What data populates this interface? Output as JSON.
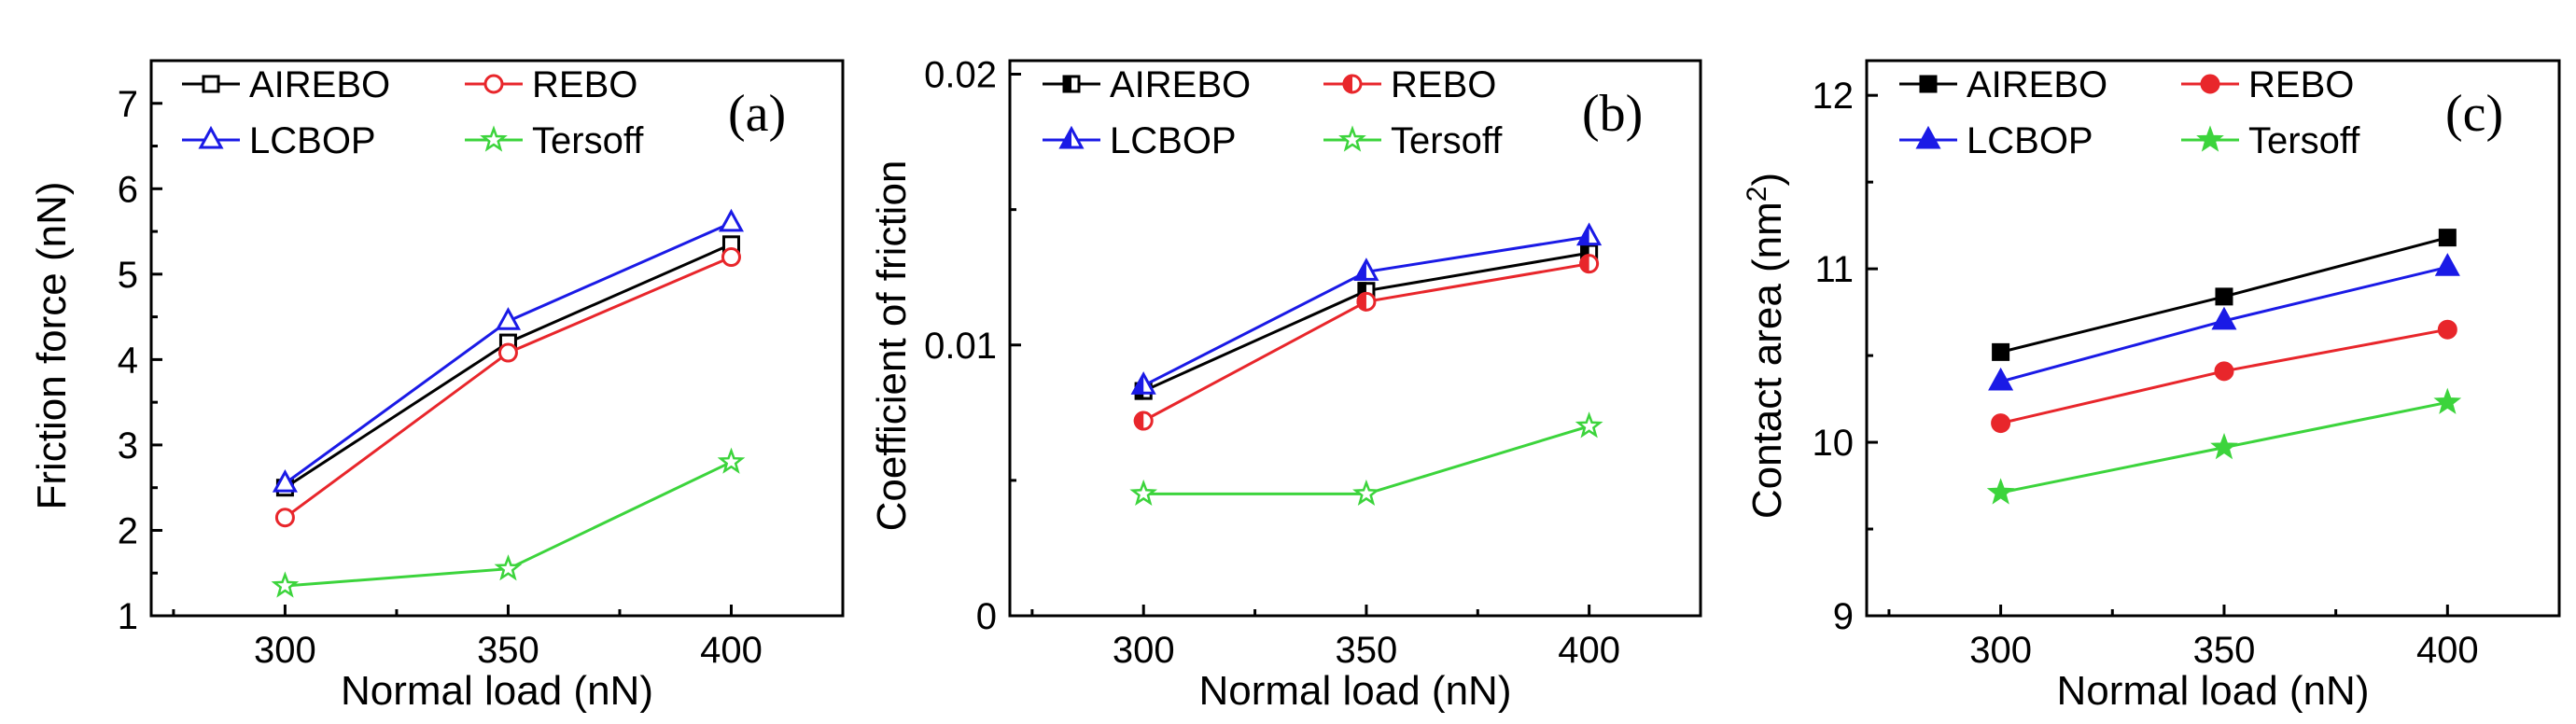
{
  "colors": {
    "AIREBO": "#000000",
    "REBO": "#e8262b",
    "LCBOP": "#1a1ae6",
    "Tersoff": "#3cd43c"
  },
  "chart_data": [
    {
      "type": "line",
      "panel_label": "(a)",
      "xlabel": "Normal load (nN)",
      "ylabel": "Friction force (nN)",
      "ylabel_sup": "",
      "xlim": [
        270,
        425
      ],
      "ylim": [
        1,
        7.5
      ],
      "x_ticks": [
        300,
        350,
        400
      ],
      "x_tick_labels": [
        "300",
        "350",
        "400"
      ],
      "y_ticks": [
        1,
        2,
        3,
        4,
        5,
        6,
        7
      ],
      "y_tick_labels": [
        "1",
        "2",
        "3",
        "4",
        "5",
        "6",
        "7"
      ],
      "marker_fill": "open",
      "x": [
        300,
        350,
        400
      ],
      "series": [
        {
          "name": "AIREBO",
          "marker": "square",
          "values": [
            2.5,
            4.2,
            5.35
          ]
        },
        {
          "name": "REBO",
          "marker": "circle",
          "values": [
            2.15,
            4.08,
            5.2
          ]
        },
        {
          "name": "LCBOP",
          "marker": "triangle",
          "values": [
            2.55,
            4.45,
            5.6
          ]
        },
        {
          "name": "Tersoff",
          "marker": "star",
          "values": [
            1.35,
            1.55,
            2.8
          ]
        }
      ],
      "legend": [
        "AIREBO",
        "REBO",
        "LCBOP",
        "Tersoff"
      ]
    },
    {
      "type": "line",
      "panel_label": "(b)",
      "xlabel": "Normal load (nN)",
      "ylabel": "Coefficient of friction",
      "ylabel_sup": "",
      "xlim": [
        270,
        425
      ],
      "ylim": [
        0,
        0.0205
      ],
      "x_ticks": [
        300,
        350,
        400
      ],
      "x_tick_labels": [
        "300",
        "350",
        "400"
      ],
      "y_ticks": [
        0,
        0.01,
        0.02
      ],
      "y_tick_labels": [
        "0",
        "0.01",
        "0.02"
      ],
      "marker_fill": "half",
      "x": [
        300,
        350,
        400
      ],
      "series": [
        {
          "name": "AIREBO",
          "marker": "square",
          "values": [
            0.0083,
            0.012,
            0.0134
          ]
        },
        {
          "name": "REBO",
          "marker": "circle",
          "values": [
            0.0072,
            0.0116,
            0.013
          ]
        },
        {
          "name": "LCBOP",
          "marker": "triangle",
          "values": [
            0.0085,
            0.0127,
            0.014
          ]
        },
        {
          "name": "Tersoff",
          "marker": "star",
          "values": [
            0.0045,
            0.0045,
            0.007
          ]
        }
      ],
      "legend": [
        "AIREBO",
        "REBO",
        "LCBOP",
        "Tersoff"
      ]
    },
    {
      "type": "line",
      "panel_label": "(c)",
      "xlabel": "Normal load (nN)",
      "ylabel": "Contact area (nm",
      "ylabel_sup": "2",
      "ylabel_suffix": ")",
      "xlim": [
        270,
        425
      ],
      "ylim": [
        9,
        12.2
      ],
      "x_ticks": [
        300,
        350,
        400
      ],
      "x_tick_labels": [
        "300",
        "350",
        "400"
      ],
      "y_ticks": [
        9,
        10,
        11,
        12
      ],
      "y_tick_labels": [
        "9",
        "10",
        "11",
        "12"
      ],
      "marker_fill": "solid",
      "x": [
        300,
        350,
        400
      ],
      "series": [
        {
          "name": "AIREBO",
          "marker": "square",
          "values": [
            10.52,
            10.84,
            11.18
          ]
        },
        {
          "name": "REBO",
          "marker": "circle",
          "values": [
            10.11,
            10.41,
            10.65
          ]
        },
        {
          "name": "LCBOP",
          "marker": "triangle",
          "values": [
            10.35,
            10.7,
            11.01
          ]
        },
        {
          "name": "Tersoff",
          "marker": "star",
          "values": [
            9.71,
            9.97,
            10.23
          ]
        }
      ],
      "legend": [
        "AIREBO",
        "REBO",
        "LCBOP",
        "Tersoff"
      ]
    }
  ]
}
